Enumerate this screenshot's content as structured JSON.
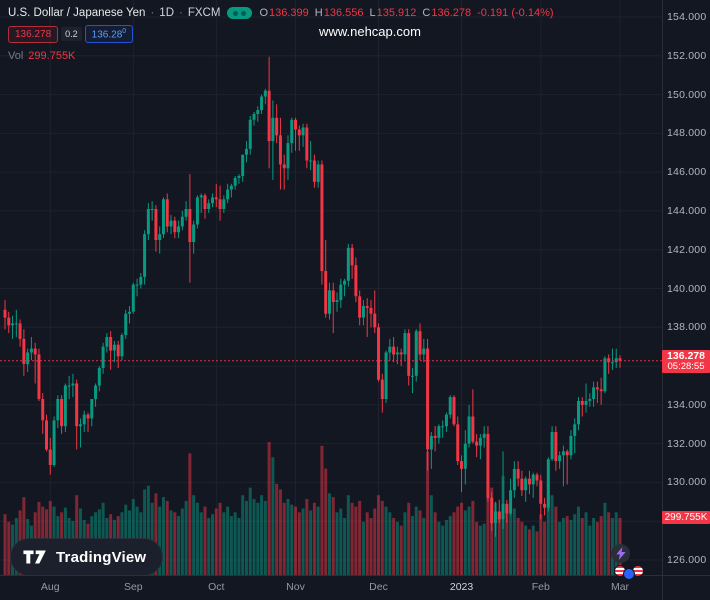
{
  "header": {
    "title": "U.S. Dollar / Japanese Yen",
    "separator": "·",
    "timeframe": "1D",
    "exchange": "FXCM",
    "ohlc": {
      "o_label": "O",
      "o_value": "136.399",
      "h_label": "H",
      "h_value": "136.556",
      "l_label": "L",
      "l_value": "135.912",
      "c_label": "C",
      "c_value": "136.278",
      "change": "-0.191 (-0.14%)"
    },
    "quote": {
      "sell": "136.278",
      "spread": "0.2",
      "buy_main": "136.28",
      "buy_sup": "0"
    },
    "volume": {
      "label": "Vol",
      "value": "299.755K"
    }
  },
  "watermark": "www.nehcap.com",
  "footer": {
    "logo_text": "TradingView"
  },
  "axis_tags": {
    "price": "136.278",
    "countdown": "05:28:55",
    "volume": "299.755K"
  },
  "chart_data": {
    "type": "candlestick",
    "title": "U.S. Dollar / Japanese Yen, 1D, FXCM",
    "symbol": "USD/JPY",
    "timeframe": "1D",
    "visible_price_range": [
      126,
      154
    ],
    "price_ticks": [
      "154.000",
      "152.000",
      "150.000",
      "148.000",
      "146.000",
      "144.000",
      "142.000",
      "140.000",
      "138.000",
      "136.000",
      "134.000",
      "132.000",
      "130.000",
      "128.000",
      "126.000"
    ],
    "months": [
      {
        "label": "Aug",
        "index": 12
      },
      {
        "label": "Sep",
        "index": 34
      },
      {
        "label": "Oct",
        "index": 56
      },
      {
        "label": "Nov",
        "index": 77
      },
      {
        "label": "Dec",
        "index": 99
      },
      {
        "label": "2023",
        "index": 121,
        "year": true
      },
      {
        "label": "Feb",
        "index": 142
      },
      {
        "label": "Mar",
        "index": 163
      }
    ],
    "last_price": 136.278,
    "countdown": "05:28:55",
    "last_volume_label": "299.755K",
    "colors": {
      "up": "#089981",
      "down": "#F23645",
      "volume_up": "rgba(8,153,129,0.5)",
      "volume_down": "rgba(242,54,69,0.5)",
      "grid": "#1E222D",
      "axis_border": "#2A2E39",
      "price_line": "#F23645"
    },
    "candles": [
      [
        138.9,
        139.4,
        137.9,
        138.5
      ],
      [
        138.5,
        138.8,
        137.7,
        138.1
      ],
      [
        138.1,
        138.6,
        137.4,
        138.2
      ],
      [
        138.2,
        138.9,
        137.5,
        138.2
      ],
      [
        138.2,
        138.4,
        137.0,
        137.4
      ],
      [
        137.4,
        137.9,
        135.5,
        136.1
      ],
      [
        136.1,
        136.9,
        135.7,
        136.7
      ],
      [
        136.7,
        137.5,
        136.3,
        136.9
      ],
      [
        136.9,
        137.2,
        135.1,
        136.6
      ],
      [
        136.6,
        136.9,
        134.2,
        134.3
      ],
      [
        134.3,
        134.6,
        132.5,
        133.2
      ],
      [
        133.2,
        133.5,
        131.6,
        131.7
      ],
      [
        131.7,
        132.3,
        130.4,
        130.9
      ],
      [
        130.9,
        133.4,
        130.8,
        133.2
      ],
      [
        133.2,
        134.5,
        132.8,
        134.3
      ],
      [
        134.3,
        134.5,
        132.5,
        132.9
      ],
      [
        132.9,
        135.1,
        132.6,
        135.0
      ],
      [
        135.0,
        135.5,
        134.3,
        135.0
      ],
      [
        135.0,
        135.6,
        134.4,
        135.1
      ],
      [
        135.1,
        135.3,
        131.7,
        132.9
      ],
      [
        132.9,
        133.3,
        131.8,
        133.0
      ],
      [
        133.0,
        133.7,
        132.6,
        133.5
      ],
      [
        133.5,
        133.6,
        132.6,
        133.3
      ],
      [
        133.3,
        134.3,
        132.9,
        134.3
      ],
      [
        134.3,
        135.1,
        133.9,
        135.0
      ],
      [
        135.0,
        136.0,
        134.7,
        135.9
      ],
      [
        135.9,
        137.2,
        135.6,
        137.0
      ],
      [
        137.0,
        137.7,
        136.7,
        137.5
      ],
      [
        137.5,
        137.8,
        135.8,
        136.8
      ],
      [
        136.8,
        137.3,
        136.2,
        137.1
      ],
      [
        137.1,
        137.3,
        135.9,
        136.5
      ],
      [
        136.5,
        137.7,
        136.3,
        137.6
      ],
      [
        137.6,
        138.9,
        137.4,
        138.7
      ],
      [
        138.7,
        139.1,
        138.2,
        138.8
      ],
      [
        138.8,
        140.3,
        138.7,
        140.2
      ],
      [
        140.2,
        140.5,
        139.6,
        140.2
      ],
      [
        140.2,
        140.8,
        140.0,
        140.6
      ],
      [
        140.6,
        143.0,
        140.2,
        142.8
      ],
      [
        142.8,
        144.4,
        142.5,
        144.1
      ],
      [
        144.1,
        144.5,
        143.5,
        144.1
      ],
      [
        144.1,
        144.3,
        141.9,
        142.5
      ],
      [
        142.5,
        143.2,
        141.8,
        142.8
      ],
      [
        142.8,
        144.7,
        142.6,
        144.6
      ],
      [
        144.6,
        144.9,
        142.9,
        143.2
      ],
      [
        143.2,
        143.8,
        142.8,
        143.5
      ],
      [
        143.5,
        143.7,
        142.6,
        142.9
      ],
      [
        142.9,
        143.5,
        142.6,
        143.2
      ],
      [
        143.2,
        144.0,
        143.0,
        143.7
      ],
      [
        143.7,
        144.5,
        143.5,
        144.1
      ],
      [
        144.1,
        145.9,
        140.3,
        142.4
      ],
      [
        142.4,
        143.5,
        141.8,
        143.3
      ],
      [
        143.3,
        144.8,
        143.1,
        144.7
      ],
      [
        144.7,
        144.9,
        143.9,
        144.8
      ],
      [
        144.8,
        144.9,
        143.6,
        144.1
      ],
      [
        144.1,
        144.6,
        143.9,
        144.4
      ],
      [
        144.4,
        144.9,
        144.2,
        144.7
      ],
      [
        144.7,
        145.4,
        144.2,
        144.6
      ],
      [
        144.6,
        145.3,
        143.5,
        144.1
      ],
      [
        144.1,
        144.8,
        143.9,
        144.6
      ],
      [
        144.6,
        145.4,
        144.4,
        145.1
      ],
      [
        145.1,
        145.4,
        144.7,
        145.3
      ],
      [
        145.3,
        145.8,
        145.1,
        145.7
      ],
      [
        145.7,
        145.9,
        145.4,
        145.8
      ],
      [
        145.8,
        146.9,
        145.5,
        146.9
      ],
      [
        146.9,
        147.6,
        146.5,
        147.2
      ],
      [
        147.2,
        148.9,
        146.9,
        148.7
      ],
      [
        148.7,
        149.1,
        148.4,
        149.0
      ],
      [
        149.0,
        149.4,
        148.6,
        149.2
      ],
      [
        149.2,
        150.0,
        149.0,
        149.9
      ],
      [
        149.9,
        150.3,
        149.5,
        150.2
      ],
      [
        150.2,
        151.95,
        146.2,
        147.6
      ],
      [
        147.6,
        149.7,
        145.6,
        148.8
      ],
      [
        148.8,
        149.5,
        147.5,
        147.9
      ],
      [
        147.9,
        148.8,
        145.1,
        146.4
      ],
      [
        146.4,
        146.9,
        145.1,
        146.2
      ],
      [
        146.2,
        147.9,
        145.6,
        147.5
      ],
      [
        147.5,
        148.8,
        147.0,
        148.7
      ],
      [
        148.7,
        148.8,
        147.1,
        148.2
      ],
      [
        148.2,
        148.4,
        147.1,
        147.9
      ],
      [
        147.9,
        148.5,
        147.3,
        148.3
      ],
      [
        148.3,
        148.5,
        146.2,
        146.6
      ],
      [
        146.6,
        147.6,
        146.1,
        146.6
      ],
      [
        146.6,
        146.9,
        145.2,
        145.5
      ],
      [
        145.5,
        146.6,
        145.2,
        146.4
      ],
      [
        146.4,
        146.6,
        140.2,
        140.9
      ],
      [
        140.9,
        142.5,
        138.5,
        138.7
      ],
      [
        138.7,
        140.3,
        138.4,
        139.9
      ],
      [
        139.9,
        140.3,
        137.7,
        139.3
      ],
      [
        139.3,
        139.8,
        138.8,
        139.4
      ],
      [
        139.4,
        140.5,
        139.0,
        140.2
      ],
      [
        140.2,
        140.5,
        139.6,
        140.4
      ],
      [
        140.4,
        142.3,
        140.1,
        142.1
      ],
      [
        142.1,
        142.3,
        140.5,
        141.2
      ],
      [
        141.2,
        141.6,
        139.3,
        139.6
      ],
      [
        139.6,
        139.9,
        138.1,
        138.5
      ],
      [
        138.5,
        139.4,
        138.1,
        139.1
      ],
      [
        139.1,
        139.5,
        137.5,
        139.0
      ],
      [
        139.0,
        139.4,
        138.0,
        138.7
      ],
      [
        138.7,
        139.9,
        137.7,
        138.0
      ],
      [
        138.0,
        138.2,
        135.2,
        135.3
      ],
      [
        135.3,
        135.6,
        133.6,
        134.3
      ],
      [
        134.3,
        136.8,
        134.1,
        136.7
      ],
      [
        136.7,
        137.4,
        136.3,
        137.0
      ],
      [
        137.0,
        137.5,
        136.2,
        136.6
      ],
      [
        136.6,
        137.0,
        136.1,
        136.7
      ],
      [
        136.7,
        136.9,
        136.0,
        136.6
      ],
      [
        136.6,
        137.9,
        136.3,
        137.7
      ],
      [
        137.7,
        137.9,
        135.0,
        135.5
      ],
      [
        135.5,
        135.9,
        134.6,
        135.5
      ],
      [
        135.5,
        137.9,
        135.2,
        137.8
      ],
      [
        137.8,
        138.2,
        136.3,
        136.6
      ],
      [
        136.6,
        137.4,
        136.2,
        136.9
      ],
      [
        136.9,
        137.4,
        130.6,
        131.7
      ],
      [
        131.7,
        132.6,
        130.7,
        132.4
      ],
      [
        132.4,
        132.9,
        131.6,
        132.3
      ],
      [
        132.3,
        133.0,
        132.0,
        132.9
      ],
      [
        132.9,
        133.2,
        132.3,
        132.9
      ],
      [
        132.9,
        133.6,
        132.6,
        133.5
      ],
      [
        133.5,
        134.5,
        133.3,
        134.4
      ],
      [
        134.4,
        134.5,
        132.9,
        133.0
      ],
      [
        133.0,
        133.4,
        130.9,
        131.1
      ],
      [
        131.1,
        131.4,
        129.5,
        130.7
      ],
      [
        130.7,
        132.7,
        129.9,
        132.0
      ],
      [
        132.0,
        134.0,
        131.8,
        133.4
      ],
      [
        133.4,
        134.8,
        132.0,
        132.1
      ],
      [
        132.1,
        132.5,
        131.3,
        131.9
      ],
      [
        131.9,
        132.5,
        131.2,
        132.3
      ],
      [
        132.3,
        132.9,
        131.8,
        132.5
      ],
      [
        132.5,
        132.9,
        129.0,
        129.2
      ],
      [
        129.2,
        129.5,
        127.5,
        127.9
      ],
      [
        127.9,
        129.0,
        127.2,
        128.5
      ],
      [
        128.5,
        129.1,
        127.9,
        128.1
      ],
      [
        128.1,
        131.6,
        127.6,
        128.9
      ],
      [
        128.9,
        129.1,
        127.9,
        128.4
      ],
      [
        128.4,
        130.2,
        128.3,
        129.6
      ],
      [
        129.6,
        131.1,
        129.2,
        130.7
      ],
      [
        130.7,
        131.1,
        129.8,
        130.2
      ],
      [
        130.2,
        130.6,
        129.3,
        129.6
      ],
      [
        129.6,
        130.3,
        129.0,
        130.2
      ],
      [
        130.2,
        130.6,
        129.4,
        129.9
      ],
      [
        129.9,
        130.5,
        129.2,
        130.4
      ],
      [
        130.4,
        130.5,
        129.8,
        130.1
      ],
      [
        130.1,
        130.4,
        128.1,
        128.9
      ],
      [
        128.9,
        129.2,
        128.3,
        128.7
      ],
      [
        128.7,
        131.3,
        128.5,
        131.2
      ],
      [
        131.2,
        132.9,
        131.1,
        132.6
      ],
      [
        132.6,
        132.9,
        130.6,
        131.1
      ],
      [
        131.1,
        131.6,
        130.7,
        131.4
      ],
      [
        131.4,
        131.9,
        129.8,
        131.6
      ],
      [
        131.6,
        131.7,
        129.9,
        131.4
      ],
      [
        131.4,
        132.7,
        131.2,
        132.4
      ],
      [
        132.4,
        133.3,
        131.5,
        133.0
      ],
      [
        133.0,
        134.4,
        132.7,
        134.2
      ],
      [
        134.2,
        134.4,
        133.4,
        134.0
      ],
      [
        134.0,
        135.1,
        133.6,
        134.2
      ],
      [
        134.2,
        134.6,
        133.9,
        134.3
      ],
      [
        134.3,
        135.2,
        133.9,
        134.9
      ],
      [
        134.9,
        135.2,
        134.1,
        134.8
      ],
      [
        134.8,
        135.4,
        134.0,
        134.7
      ],
      [
        134.7,
        136.5,
        134.6,
        136.4
      ],
      [
        136.4,
        136.6,
        135.6,
        136.2
      ],
      [
        136.2,
        136.9,
        135.8,
        136.2
      ],
      [
        136.2,
        136.9,
        135.9,
        136.4
      ],
      [
        136.399,
        136.556,
        135.912,
        136.278
      ]
    ],
    "volumes": [
      320,
      280,
      265,
      300,
      340,
      410,
      295,
      260,
      330,
      385,
      360,
      345,
      390,
      360,
      310,
      330,
      355,
      300,
      285,
      420,
      350,
      290,
      270,
      310,
      330,
      345,
      380,
      300,
      320,
      290,
      310,
      330,
      370,
      340,
      400,
      360,
      330,
      450,
      470,
      380,
      430,
      360,
      410,
      390,
      340,
      330,
      310,
      350,
      390,
      640,
      420,
      380,
      330,
      360,
      300,
      320,
      350,
      380,
      330,
      360,
      310,
      330,
      300,
      420,
      390,
      460,
      400,
      380,
      420,
      390,
      700,
      620,
      480,
      450,
      380,
      400,
      370,
      360,
      330,
      350,
      400,
      340,
      380,
      360,
      680,
      560,
      430,
      410,
      330,
      350,
      300,
      420,
      380,
      360,
      390,
      280,
      330,
      300,
      350,
      420,
      390,
      360,
      330,
      300,
      280,
      260,
      330,
      380,
      310,
      360,
      340,
      300,
      650,
      420,
      330,
      280,
      260,
      290,
      310,
      330,
      360,
      380,
      340,
      360,
      390,
      280,
      260,
      270,
      500,
      460,
      380,
      330,
      520,
      360,
      330,
      350,
      300,
      280,
      260,
      240,
      260,
      230,
      320,
      280,
      480,
      420,
      360,
      280,
      300,
      310,
      290,
      320,
      360,
      300,
      330,
      260,
      300,
      280,
      310,
      380,
      330,
      300,
      330,
      299.755
    ]
  }
}
